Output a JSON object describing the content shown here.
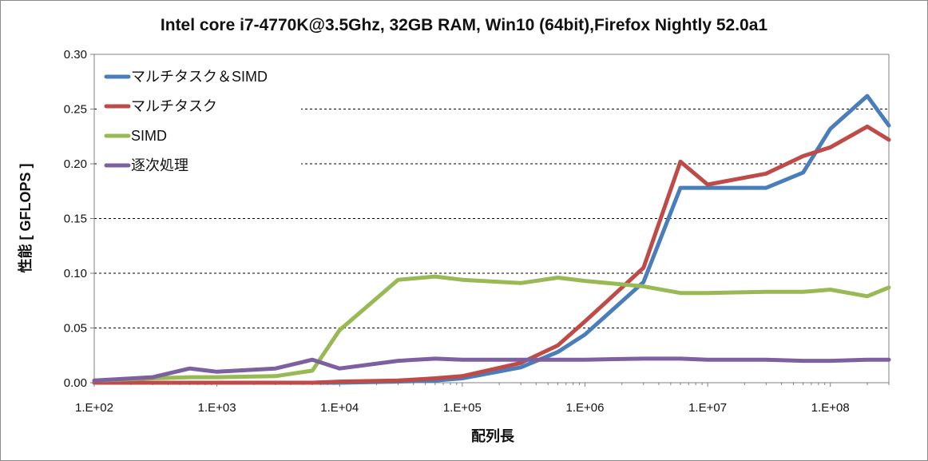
{
  "chart_data": {
    "type": "line",
    "title": "Intel core i7-4770K@3.5Ghz, 32GB RAM, Win10 (64bit),Firefox Nightly 52.0a1",
    "xlabel": "配列長",
    "ylabel": "性能 [ GFLOPS ]",
    "x_scale": "log",
    "xlim": [
      100,
      300000000
    ],
    "ylim": [
      0,
      0.3
    ],
    "x_tick_labels": [
      "1.E+02",
      "1.E+03",
      "1.E+04",
      "1.E+05",
      "1.E+06",
      "1.E+07",
      "1.E+08"
    ],
    "x_tick_values": [
      100,
      1000,
      10000,
      100000,
      1000000,
      10000000,
      100000000
    ],
    "y_tick_labels": [
      "0.00",
      "0.05",
      "0.10",
      "0.15",
      "0.20",
      "0.25",
      "0.30"
    ],
    "y_tick_values": [
      0,
      0.05,
      0.1,
      0.15,
      0.2,
      0.25,
      0.3
    ],
    "grid": "horizontal dashed",
    "legend_position": "top-left",
    "x": [
      100,
      300,
      600,
      1000,
      3000,
      6000,
      10000,
      30000,
      60000,
      100000,
      300000,
      600000,
      1000000,
      3000000,
      6000000,
      10000000,
      30000000,
      60000000,
      100000000,
      200000000,
      300000000
    ],
    "series": [
      {
        "name": "マルチタスク＆SIMD",
        "color": "#4a7ebb",
        "values": [
          0.0,
          0.0,
          0.0,
          0.0,
          0.0,
          0.0,
          0.0,
          0.001,
          0.002,
          0.004,
          0.014,
          0.028,
          0.044,
          0.092,
          0.178,
          0.178,
          0.178,
          0.192,
          0.232,
          0.262,
          0.235
        ]
      },
      {
        "name": "マルチタスク",
        "color": "#be4b48",
        "values": [
          0.0,
          0.0,
          0.0,
          0.0,
          0.0,
          0.0,
          0.001,
          0.002,
          0.004,
          0.006,
          0.018,
          0.034,
          0.056,
          0.105,
          0.202,
          0.181,
          0.191,
          0.207,
          0.215,
          0.234,
          0.222
        ]
      },
      {
        "name": "SIMD",
        "color": "#98b954",
        "values": [
          0.002,
          0.004,
          0.005,
          0.005,
          0.006,
          0.011,
          0.048,
          0.094,
          0.097,
          0.094,
          0.091,
          0.096,
          0.093,
          0.088,
          0.082,
          0.082,
          0.083,
          0.083,
          0.085,
          0.079,
          0.087
        ]
      },
      {
        "name": "逐次処理",
        "color": "#7d60a0",
        "values": [
          0.002,
          0.005,
          0.013,
          0.01,
          0.013,
          0.021,
          0.013,
          0.02,
          0.022,
          0.021,
          0.021,
          0.021,
          0.021,
          0.022,
          0.022,
          0.021,
          0.021,
          0.02,
          0.02,
          0.021,
          0.021
        ]
      }
    ]
  }
}
